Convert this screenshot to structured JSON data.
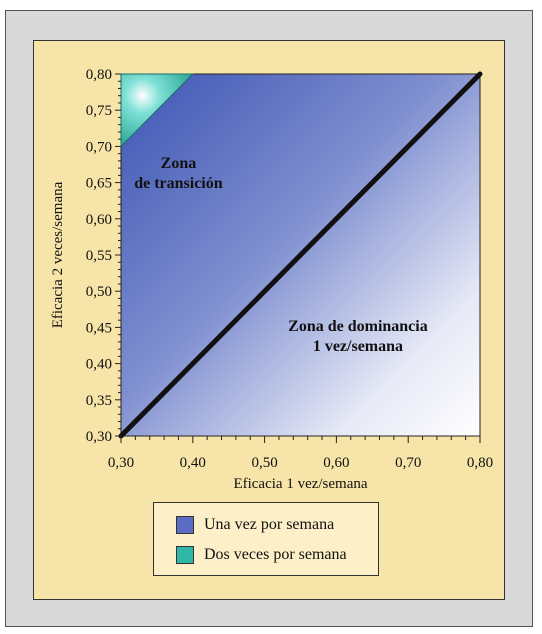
{
  "chart_data": {
    "type": "area",
    "xlabel": "Eficacia 1 vez/semana",
    "ylabel": "Eficacia 2 veces/semana",
    "xlim": [
      0.3,
      0.8
    ],
    "ylim": [
      0.3,
      0.8
    ],
    "x_ticks": [
      "0,30",
      "0,40",
      "0,50",
      "0,60",
      "0,70",
      "0,80"
    ],
    "y_ticks": [
      "0,30",
      "0,35",
      "0,40",
      "0,45",
      "0,50",
      "0,55",
      "0,60",
      "0,65",
      "0,70",
      "0,75",
      "0,80"
    ],
    "diagonal": {
      "x": [
        0.3,
        0.8
      ],
      "y": [
        0.3,
        0.8
      ]
    },
    "regions": [
      {
        "name": "Una vez por semana",
        "color": "#4a5fb8"
      },
      {
        "name": "Dos veces por semana",
        "color": "#2fb8a8",
        "polygon": [
          [
            0.3,
            0.7
          ],
          [
            0.3,
            0.8
          ],
          [
            0.4,
            0.8
          ]
        ]
      }
    ],
    "annotations": [
      {
        "lines": [
          "Zona",
          "de transición"
        ],
        "x": 0.38,
        "y": 0.67
      },
      {
        "lines": [
          "Zona de dominancia",
          "1 vez/semana"
        ],
        "x": 0.63,
        "y": 0.445
      }
    ],
    "legend": [
      {
        "label": "Una vez por semana",
        "color": "#5a6cc4"
      },
      {
        "label": "Dos veces por semana",
        "color": "#2fb8a8"
      }
    ]
  }
}
